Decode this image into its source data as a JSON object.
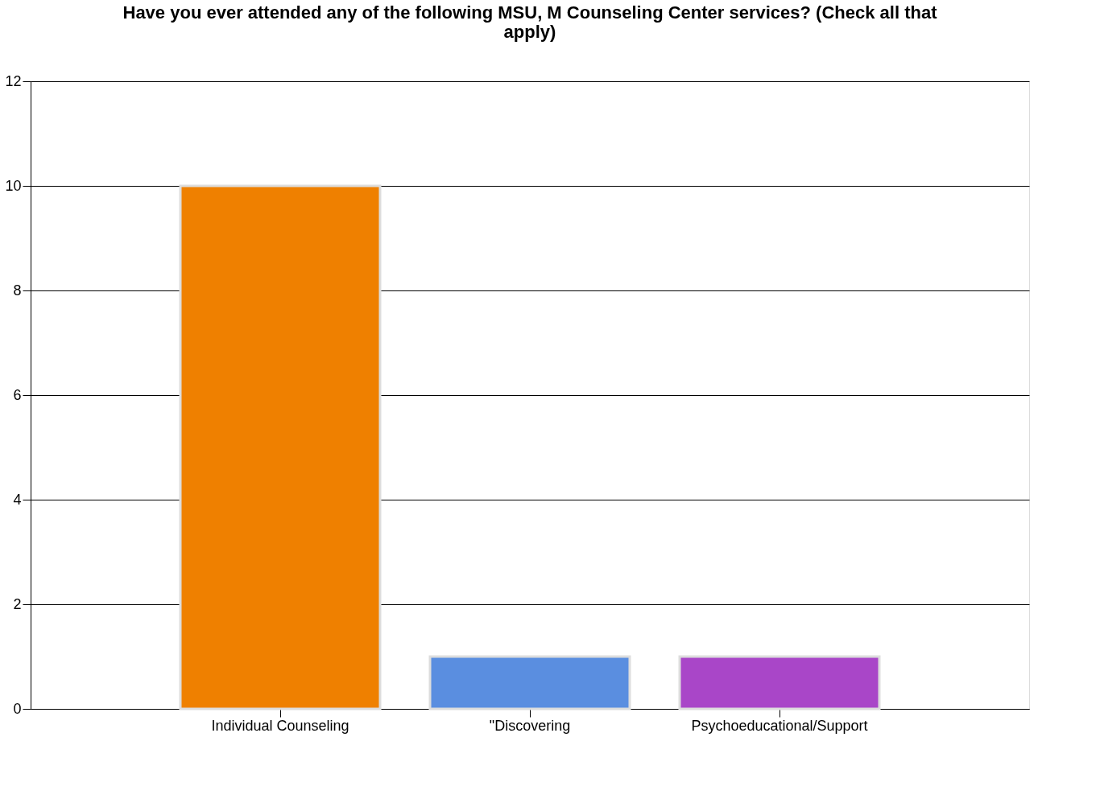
{
  "chart_data": {
    "type": "bar",
    "title": "Have you ever attended any of the following MSU, M Counseling Center services? (Check all that apply)",
    "categories": [
      "Individual Counseling",
      "\"Discovering",
      "Psychoeducational/Support"
    ],
    "values": [
      10,
      1,
      1
    ],
    "colors": [
      "#ef8000",
      "#5a8ee0",
      "#a946c8"
    ],
    "ylim": [
      0,
      12
    ],
    "yticks": [
      0,
      2,
      4,
      6,
      8,
      10,
      12
    ],
    "grid": "y",
    "legend": false
  }
}
